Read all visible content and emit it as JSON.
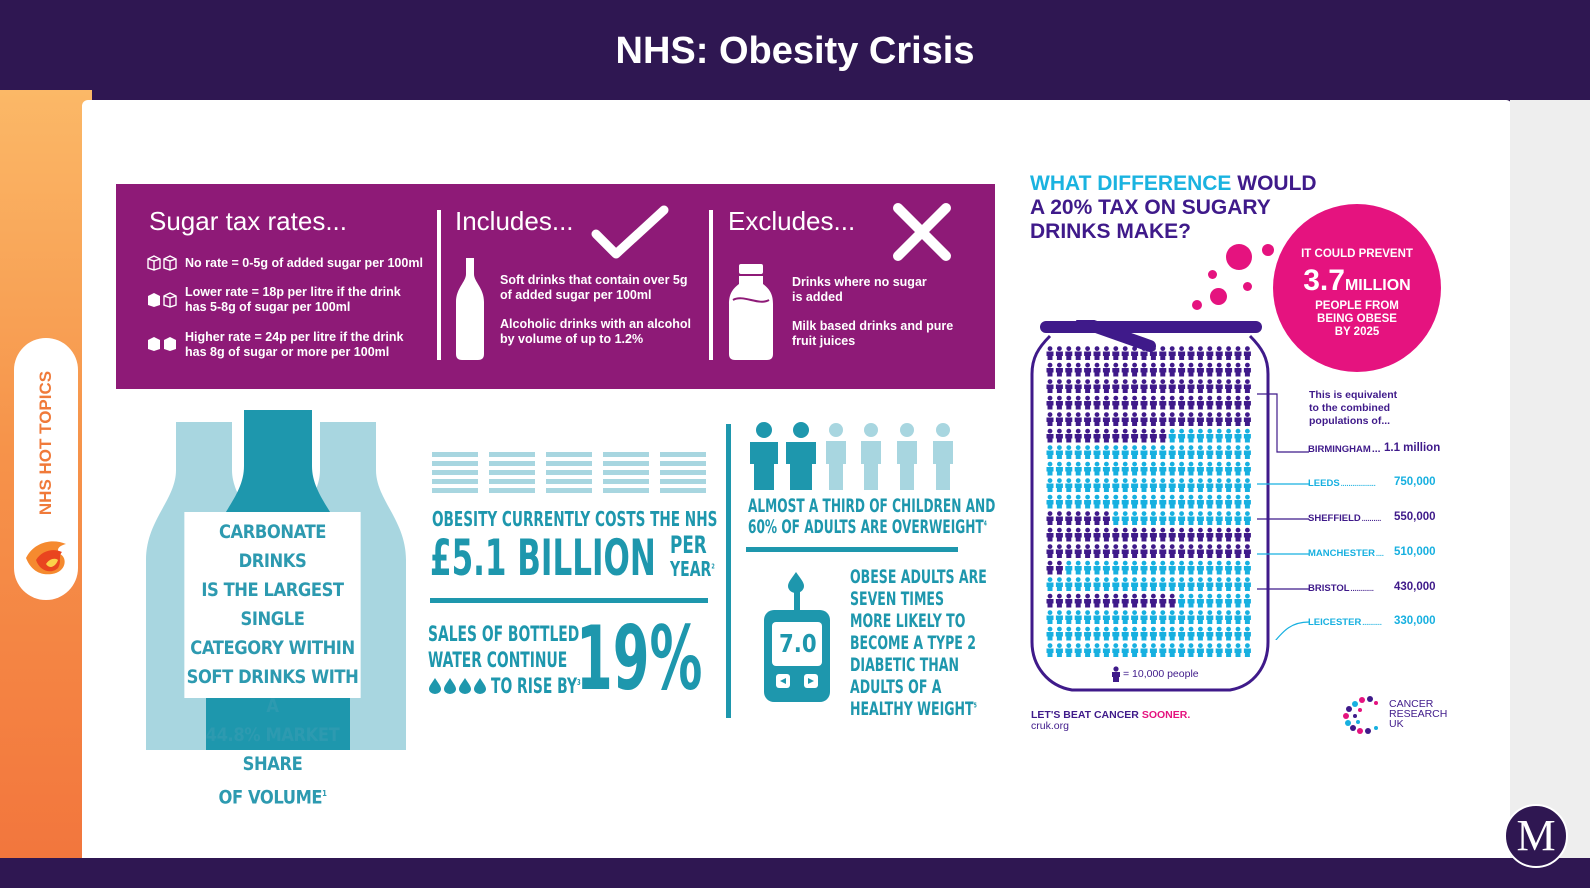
{
  "slide": {
    "title": "NHS: Obesity Crisis",
    "side_tab": "NHS HOT TOPICS",
    "brand_logo_letter": "M"
  },
  "colors": {
    "header": "#2f1752",
    "sugar_panel": "#8e1a77",
    "teal": "#1e97ad",
    "purple": "#3f1a8a",
    "cyan": "#17b0e0",
    "magenta": "#e5137f",
    "sidebar_orange": "#f6934a"
  },
  "sugar_tax": {
    "heading": "Sugar tax rates...",
    "rates": [
      {
        "icon": "sugar-cube-outline-icon",
        "text_1": "No rate = 0-5g of added sugar per 100ml",
        "text_2": ""
      },
      {
        "icon": "sugar-cubes-icon",
        "text_1": "Lower rate = 18p per litre if the drink",
        "text_2": "has 5-8g of sugar per 100ml"
      },
      {
        "icon": "sugar-cubes-solid-icon",
        "text_1": "Higher rate = 24p per litre if the drink",
        "text_2": "has 8g of sugar or more per 100ml"
      }
    ],
    "includes": {
      "heading": "Includes...",
      "item_1a": "Soft drinks that contain over 5g",
      "item_1b": "of added sugar per 100ml",
      "item_2a": "Alcoholic drinks with an alcohol",
      "item_2b": "by volume of up to 1.2%"
    },
    "excludes": {
      "heading": "Excludes...",
      "item_1a": "Drinks where no sugar",
      "item_1b": "is added",
      "item_2a": "Milk based drinks and pure",
      "item_2b": "fruit juices"
    }
  },
  "facts": {
    "carbonate": [
      "CARBONATE DRINKS",
      "IS THE LARGEST SINGLE",
      "CATEGORY WITHIN",
      "SOFT DRINKS WITH A",
      "44.8% MARKET SHARE",
      "OF VOLUME"
    ],
    "carbonate_ref": "1",
    "cost_line": "OBESITY CURRENTLY COSTS THE NHS",
    "cost_amount": "£5.1 BILLION",
    "cost_per": "PER",
    "cost_year": "YEAR",
    "cost_ref": "2",
    "water_1": "SALES OF BOTTLED",
    "water_2": "WATER CONTINUE",
    "water_3": "TO RISE BY",
    "water_ref": "3",
    "water_pct": "19%",
    "children_1": "ALMOST A THIRD OF CHILDREN AND",
    "children_2": "60% OF ADULTS ARE OVERWEIGHT",
    "children_ref": "4",
    "meter_value": "7.0",
    "diabetic": [
      "OBESE ADULTS ARE",
      "SEVEN TIMES",
      "MORE LIKELY TO",
      "BECOME A TYPE 2",
      "DIABETIC THAN",
      "ADULTS OF A",
      "HEALTHY WEIGHT"
    ],
    "diabetic_ref": "5"
  },
  "cruk": {
    "question_1a": "WHAT DIFFERENCE",
    "question_1b": " WOULD",
    "question_2": "A 20% TAX ON SUGARY",
    "question_3": "DRINKS MAKE?",
    "circle_top": "IT COULD PREVENT",
    "circle_number": "3.7",
    "circle_unit": "MILLION",
    "circle_1": "PEOPLE FROM",
    "circle_2": "BEING OBESE",
    "circle_3": "BY 2025",
    "equiv_1": "This is equivalent",
    "equiv_2": "to the combined",
    "equiv_3": "populations of...",
    "cities": [
      {
        "name": "BIRMINGHAM",
        "dots": "...",
        "value": "1.1 million"
      },
      {
        "name": "LEEDS",
        "dots": "..................",
        "value": "750,000"
      },
      {
        "name": "SHEFFIELD",
        "dots": "..........",
        "value": "550,000"
      },
      {
        "name": "MANCHESTER",
        "dots": "....",
        "value": "510,000"
      },
      {
        "name": "BRISTOL",
        "dots": "............",
        "value": "430,000"
      },
      {
        "name": "LEICESTER",
        "dots": "..........",
        "value": "330,000"
      }
    ],
    "legend": "= 10,000 people",
    "tagline_a": "LET'S BEAT CANCER ",
    "tagline_b": "SOONER.",
    "url": "cruk.org",
    "logo_1": "CANCER",
    "logo_2": "RESEARCH",
    "logo_3": "UK"
  }
}
